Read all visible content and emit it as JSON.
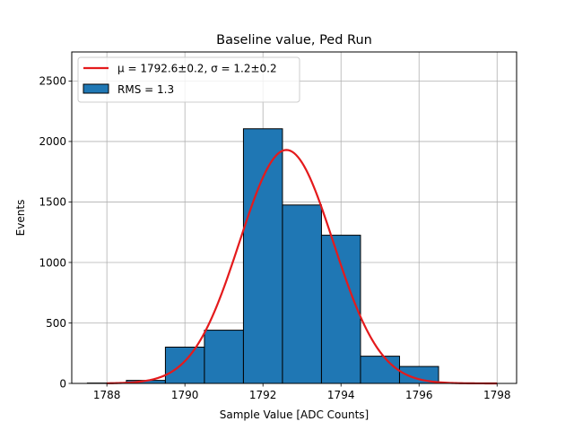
{
  "chart_data": {
    "type": "bar",
    "title": "Baseline value, Ped Run",
    "xlabel": "Sample Value [ADC Counts]",
    "ylabel": "Events",
    "xlim": [
      1787.1,
      1798.5
    ],
    "ylim": [
      0,
      2740
    ],
    "xticks": [
      "1788",
      "1790",
      "1792",
      "1794",
      "1796",
      "1798"
    ],
    "xtick_values": [
      1788,
      1790,
      1792,
      1794,
      1796,
      1798
    ],
    "yticks": [
      "0",
      "500",
      "1000",
      "1500",
      "2000",
      "2500"
    ],
    "ytick_values": [
      0,
      500,
      1000,
      1500,
      2000,
      2500
    ],
    "grid": true,
    "legend_position": "top-left",
    "series": [
      {
        "name": "RMS = 1.3",
        "kind": "histogram",
        "color": "#1f77b4",
        "edgecolor": "#000000",
        "bins": [
          {
            "start": 1787.5,
            "end": 1788.5,
            "value": 3
          },
          {
            "start": 1788.5,
            "end": 1789.5,
            "value": 25
          },
          {
            "start": 1789.5,
            "end": 1790.5,
            "value": 300
          },
          {
            "start": 1790.5,
            "end": 1791.5,
            "value": 440
          },
          {
            "start": 1791.5,
            "end": 1792.5,
            "value": 2105
          },
          {
            "start": 1792.5,
            "end": 1793.5,
            "value": 1475
          },
          {
            "start": 1793.5,
            "end": 1794.5,
            "value": 1225
          },
          {
            "start": 1794.5,
            "end": 1795.5,
            "value": 225
          },
          {
            "start": 1795.5,
            "end": 1796.5,
            "value": 140
          },
          {
            "start": 1796.5,
            "end": 1797.5,
            "value": 3
          }
        ]
      },
      {
        "name": "μ = 1792.6±0.2, σ = 1.2±0.2",
        "kind": "gaussian-fit",
        "color": "#e41a1c",
        "mu": 1792.6,
        "sigma": 1.2,
        "amplitude": 1930,
        "x_range": [
          1788,
          1798
        ]
      }
    ]
  }
}
